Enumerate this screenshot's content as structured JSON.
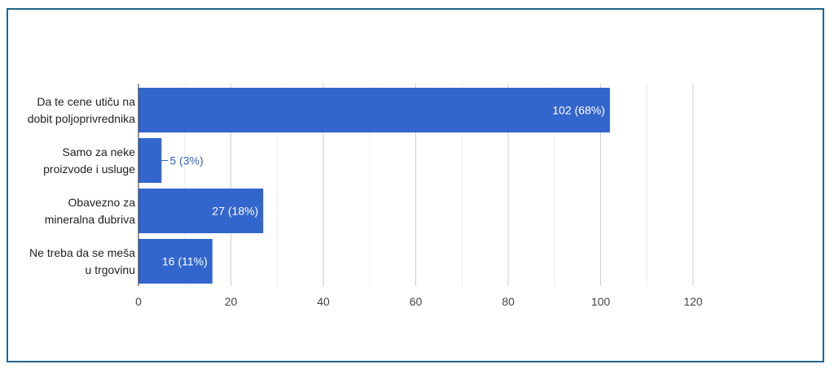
{
  "colors": {
    "bar": "#3366cc",
    "frame": "#1f6688",
    "grid": "#d9d9d9",
    "axis": "#333333"
  },
  "chart_data": {
    "type": "bar",
    "orientation": "horizontal",
    "categories": [
      "Da te cene utiču na dobit poljoprivrednika",
      "Samo za neke proizvode i usluge",
      "Obavezno za mineralna đubriva",
      "Ne treba da se meša u trgovinu"
    ],
    "category_lines": [
      [
        "Da te cene utiču na",
        "dobit poljoprivrednika"
      ],
      [
        "Samo za neke",
        "proizvode i usluge"
      ],
      [
        "Obavezno za",
        "mineralna đubriva"
      ],
      [
        "Ne treba da se meša",
        "u trgovinu"
      ]
    ],
    "values": [
      102,
      5,
      27,
      16
    ],
    "data_labels": [
      "102 (68%)",
      "5 (3%)",
      "27 (18%)",
      "16 (11%)"
    ],
    "xlim": [
      0,
      120
    ],
    "x_ticks": [
      "0",
      "20",
      "40",
      "60",
      "80",
      "100",
      "120"
    ],
    "x_tick_values": [
      0,
      20,
      40,
      60,
      80,
      100,
      120
    ],
    "grid": true,
    "legend": "none"
  }
}
